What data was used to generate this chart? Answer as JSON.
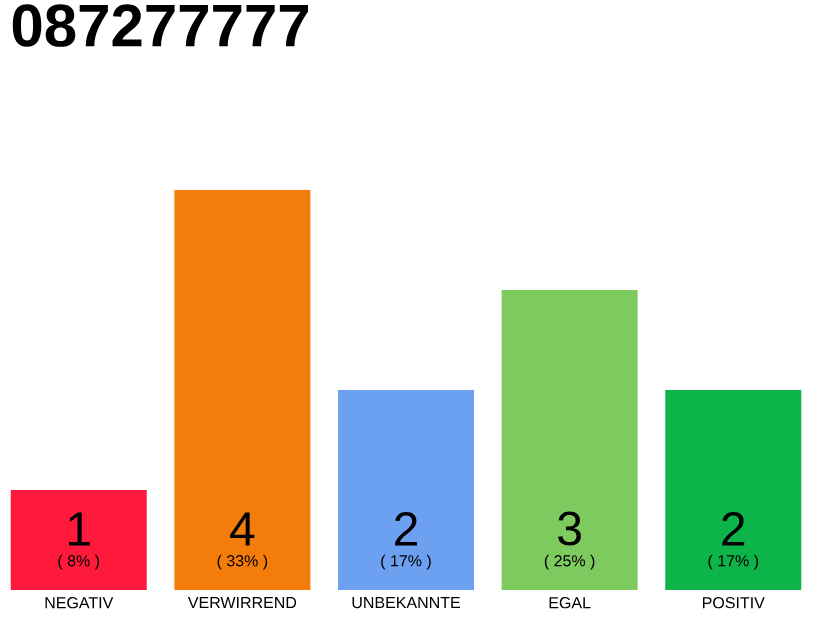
{
  "chart_data": {
    "type": "bar",
    "title": "087277777",
    "categories": [
      "NEGATIV",
      "VERWIRREND",
      "UNBEKANNTE",
      "EGAL",
      "POSITIV"
    ],
    "values": [
      1,
      4,
      2,
      3,
      2
    ],
    "colors": [
      "#ff1a3c",
      "#f47c0a",
      "#6ca0f0",
      "#7dcb5f",
      "#0cb44a"
    ],
    "ylim": [
      0,
      4
    ],
    "tick_labels": "x",
    "data_labels": true,
    "annotations": [
      "( 8% )",
      "( 33% )",
      "( 17% )",
      "( 25% )",
      "( 17% )"
    ]
  }
}
